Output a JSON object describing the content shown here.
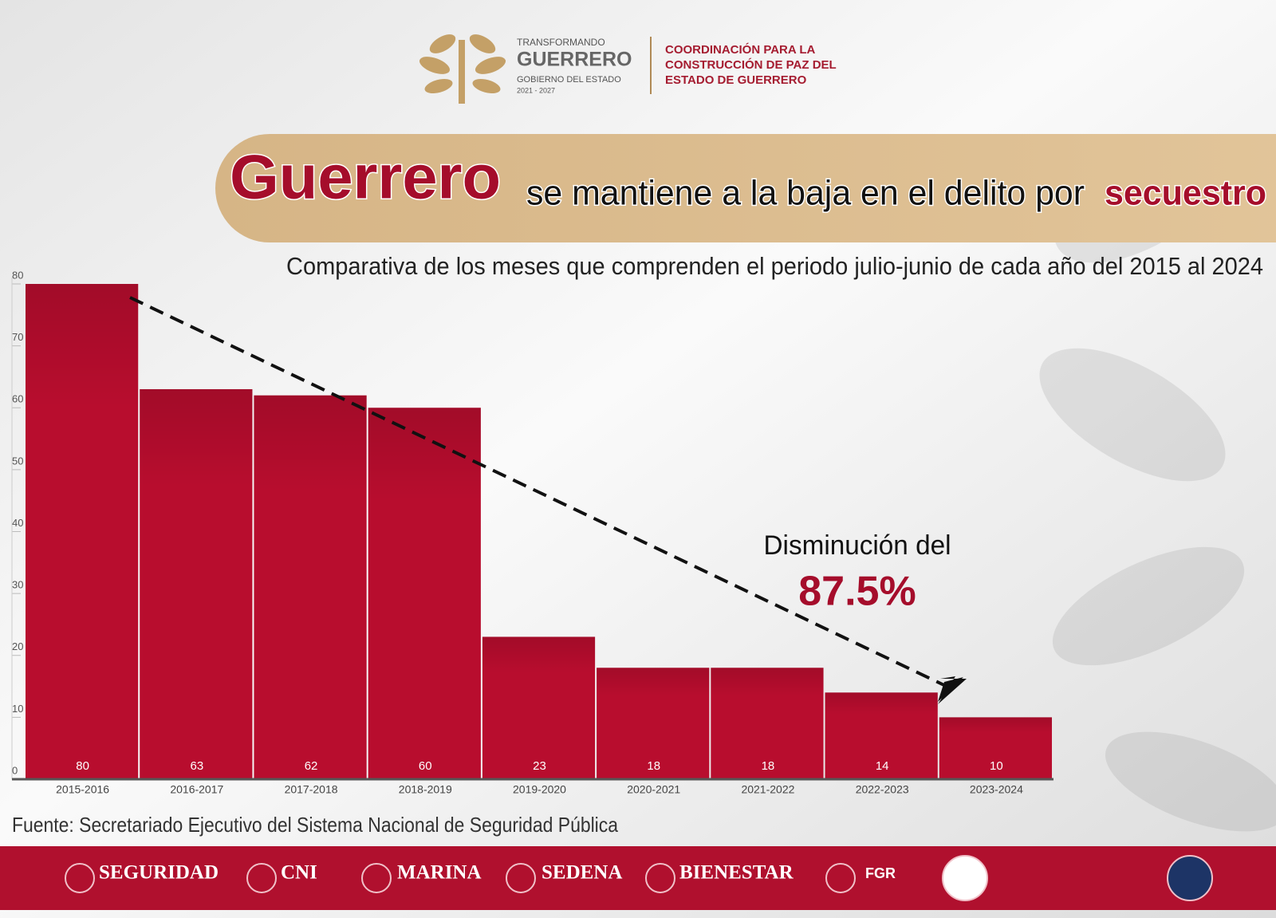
{
  "header": {
    "logo_lines": [
      "TRANSFORMANDO",
      "GUERRERO",
      "GOBIERNO DEL ESTADO",
      "2021 - 2027"
    ],
    "org_lines": [
      "COORDINACIÓN PARA LA",
      "CONSTRUCCIÓN DE PAZ DEL",
      "ESTADO DE GUERRERO"
    ]
  },
  "chart_data": {
    "type": "bar",
    "title_parts": [
      "Guerrero",
      "se mantiene a la baja en el delito por",
      "secuestro"
    ],
    "subtitle": "Comparativa de los meses que comprenden el periodo julio-junio de cada año del 2015 al 2024",
    "categories": [
      "2015-2016",
      "2016-2017",
      "2017-2018",
      "2018-2019",
      "2019-2020",
      "2020-2021",
      "2021-2022",
      "2022-2023",
      "2023-2024"
    ],
    "values": [
      80,
      63,
      62,
      60,
      23,
      18,
      18,
      14,
      10
    ],
    "color": "#b80d2e",
    "ylim": [
      0,
      80
    ],
    "yticks": [
      0,
      10,
      20,
      30,
      40,
      50,
      60,
      70,
      80
    ],
    "annotations": [
      "Disminución del",
      "87.5%"
    ],
    "source": "Fuente: Secretariado Ejecutivo del Sistema Nacional de Seguridad Pública"
  },
  "footer": {
    "logos": [
      "SEGURIDAD",
      "CNI",
      "MARINA",
      "SEDENA",
      "BIENESTAR",
      "FGR"
    ]
  }
}
